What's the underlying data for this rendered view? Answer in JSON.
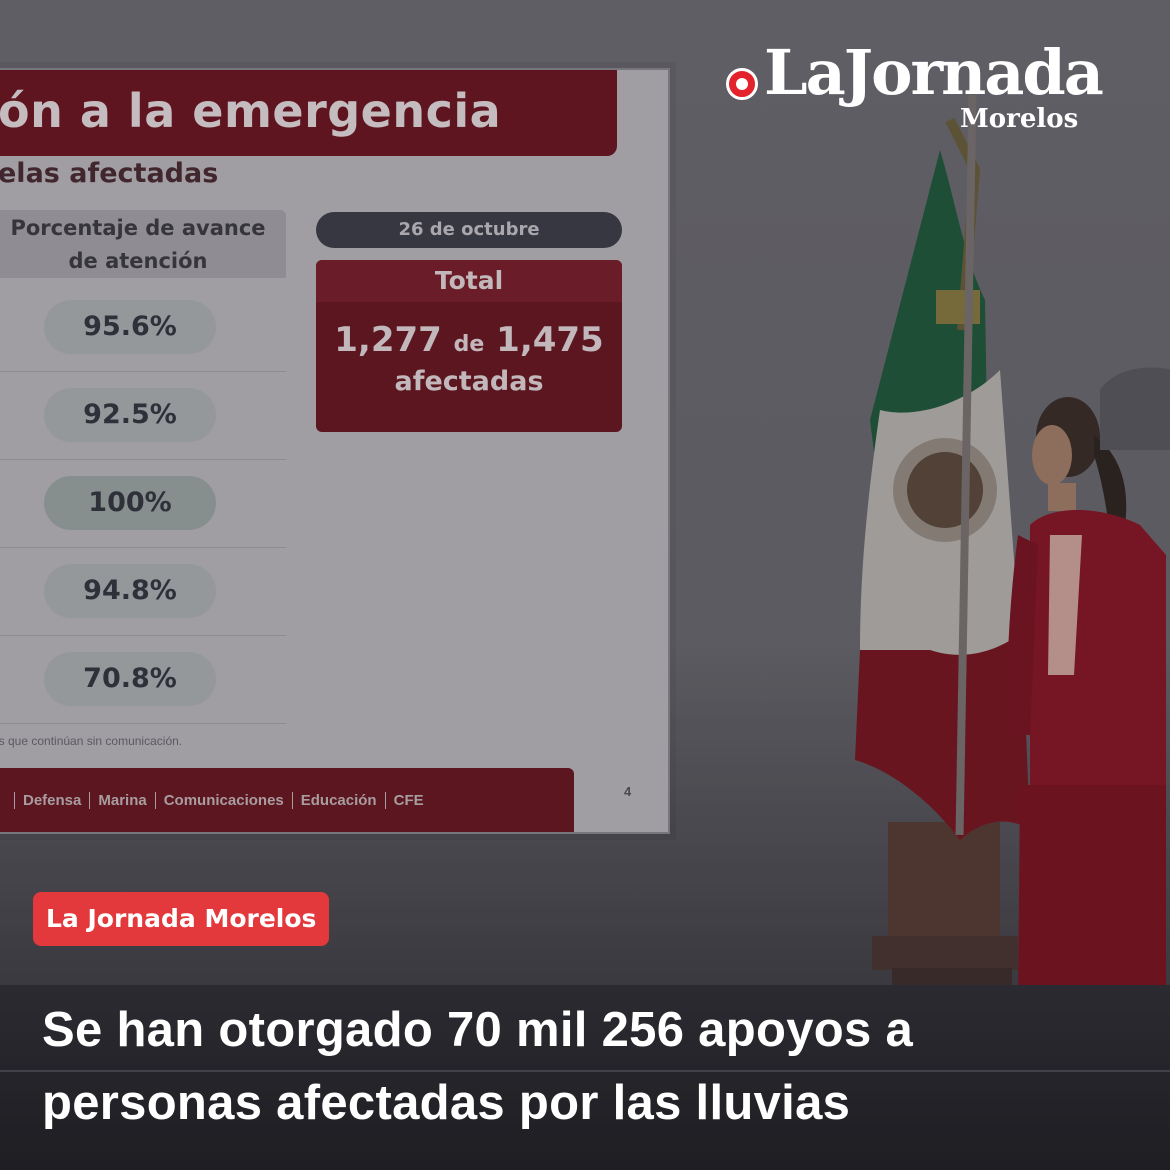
{
  "brand": {
    "name": "LaJornada",
    "sub": "Morelos"
  },
  "tag": "La Jornada Morelos",
  "headline": "Se han otorgado 70 mil 256 apoyos a personas afectadas por las lluvias",
  "slide": {
    "title": "ón a la emergencia",
    "subtitle": "elas afectadas",
    "column_header_line1": "Porcentaje de avance",
    "column_header_line2": "de atención",
    "rows": [
      "95.6%",
      "92.5%",
      "100%",
      "94.8%",
      "70.8%"
    ],
    "footnote": "es que continúan sin comunicación.",
    "date": "26 de octubre",
    "total_label": "Total",
    "total_a": "1,277",
    "total_de": "de",
    "total_b": "1,475",
    "total_sub": "afectadas",
    "logos": [
      "Defensa",
      "Marina",
      "Comunicaciones",
      "Educación",
      "CFE"
    ],
    "page_number": "4"
  },
  "colors": {
    "tag": "#e4393c",
    "slide_red": "#6a1520",
    "flag_green": "#1f5a3a",
    "flag_red": "#7a1420"
  }
}
